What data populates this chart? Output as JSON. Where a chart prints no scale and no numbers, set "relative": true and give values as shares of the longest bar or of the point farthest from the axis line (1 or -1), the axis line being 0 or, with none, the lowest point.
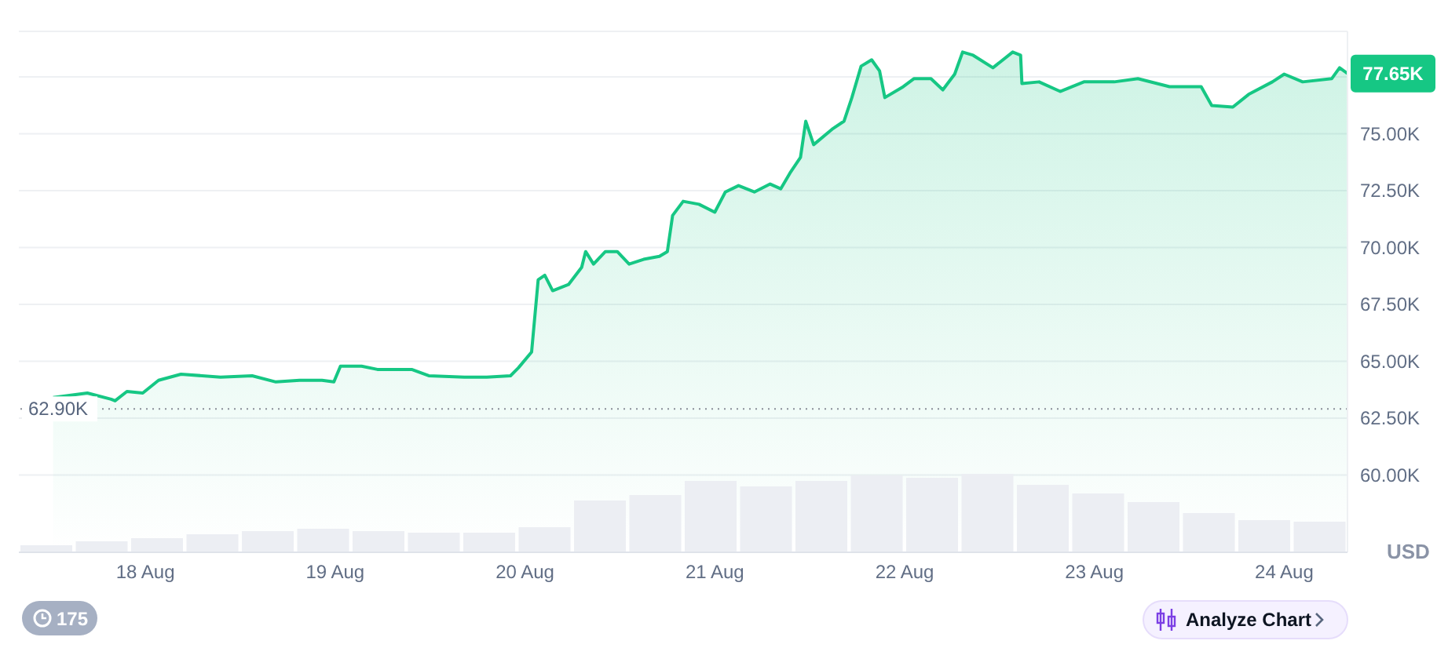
{
  "chart_data": [
    {
      "type": "area",
      "ylabel": "USD",
      "x": [
        "--08-17T12:20",
        "--08-17T16:40",
        "--08-17T19:40",
        "--08-17T20:10",
        "--08-17T21:40",
        "--08-17T23:40",
        "--08-18T01:40",
        "--08-18T04:30",
        "--08-18T09:30",
        "--08-18T13:30",
        "--08-18T16:30",
        "--08-18T19:30",
        "--08-18T22:20",
        "--08-18T23:50",
        "--08-19T00:40",
        "--08-19T03:20",
        "--08-19T05:20",
        "--08-19T09:40",
        "--08-19T11:50",
        "--08-19T16:20",
        "--08-19T19:10",
        "--08-19T22:10",
        "--08-19T23:10",
        "--08-20T00:50",
        "--08-20T01:40",
        "--08-20T02:30",
        "--08-20T03:30",
        "--08-20T05:30",
        "--08-20T07:10",
        "--08-20T07:40",
        "--08-20T08:40",
        "--08-20T10:10",
        "--08-20T11:40",
        "--08-20T13:10",
        "--08-20T15:00",
        "--08-20T17:00",
        "--08-20T18:00",
        "--08-20T18:40",
        "--08-20T20:00",
        "--08-20T22:00",
        "--08-21T00:00",
        "--08-21T01:20",
        "--08-21T03:00",
        "--08-21T05:00",
        "--08-21T07:00",
        "--08-21T08:20",
        "--08-21T09:30",
        "--08-21T10:50",
        "--08-21T11:30",
        "--08-21T12:30",
        "--08-21T14:50",
        "--08-21T16:20",
        "--08-21T17:20",
        "--08-21T18:30",
        "--08-21T19:50",
        "--08-21T20:50",
        "--08-21T21:30",
        "--08-21T23:50",
        "--08-22T01:10",
        "--08-22T03:20",
        "--08-22T04:50",
        "--08-22T06:20",
        "--08-22T07:20",
        "--08-22T08:40",
        "--08-22T11:10",
        "--08-22T13:40",
        "--08-22T14:40",
        "--08-22T14:50",
        "--08-22T17:00",
        "--08-22T19:40",
        "--08-22T22:40",
        "--08-23T02:30",
        "--08-23T05:30",
        "--08-23T09:30",
        "--08-23T13:30",
        "--08-23T14:50",
        "--08-23T17:30",
        "--08-23T19:30",
        "--08-23T22:30",
        "--08-24T00:00",
        "--08-24T02:20",
        "--08-24T06:00",
        "--08-24T07:00",
        "--08-24T08:00"
      ],
      "series": [
        {
          "color": "#16c784",
          "values": [
            63400,
            63600,
            63330,
            63260,
            63670,
            63600,
            64160,
            64430,
            64300,
            64360,
            64090,
            64160,
            64160,
            64090,
            64780,
            64780,
            64640,
            64640,
            64360,
            64300,
            64300,
            64360,
            64710,
            65400,
            68580,
            68780,
            68100,
            68370,
            69130,
            69820,
            69270,
            69820,
            69820,
            69270,
            69480,
            69610,
            69820,
            71410,
            72030,
            71900,
            71550,
            72440,
            72720,
            72440,
            72790,
            72580,
            73270,
            73960,
            75550,
            74520,
            75200,
            75550,
            76590,
            77970,
            78250,
            77760,
            76590,
            77070,
            77420,
            77420,
            76930,
            77620,
            78590,
            78450,
            77900,
            78590,
            78450,
            77210,
            77280,
            76860,
            77280,
            77280,
            77420,
            77070,
            77070,
            76240,
            76170,
            76730,
            77280,
            77620,
            77280,
            77420,
            77900,
            77650
          ]
        }
      ],
      "xlim": [
        "--08-17T08:00",
        "--08-24T08:00"
      ],
      "xticks": [
        {
          "value": "--08-18",
          "label": "18 Aug"
        },
        {
          "value": "--08-19",
          "label": "19 Aug"
        },
        {
          "value": "--08-20",
          "label": "20 Aug"
        },
        {
          "value": "--08-21",
          "label": "21 Aug"
        },
        {
          "value": "--08-22",
          "label": "22 Aug"
        },
        {
          "value": "--08-23",
          "label": "23 Aug"
        },
        {
          "value": "--08-24",
          "label": "24 Aug"
        }
      ],
      "ylim": [
        56600,
        79500
      ],
      "yticks": [
        {
          "value": 60000,
          "label": "60.00K"
        },
        {
          "value": 62500,
          "label": "62.50K"
        },
        {
          "value": 65000,
          "label": "65.00K"
        },
        {
          "value": 67500,
          "label": "67.50K"
        },
        {
          "value": 70000,
          "label": "70.00K"
        },
        {
          "value": 72500,
          "label": "72.50K"
        },
        {
          "value": 75000,
          "label": "75.00K"
        },
        {
          "value": 77500,
          "label": null
        }
      ],
      "grid": "y",
      "ref_lines": [
        {
          "axis": "y",
          "value": 62900,
          "label": "62.90K",
          "color": "#8a8f99",
          "line_style": "dotted"
        }
      ],
      "annotations": [
        {
          "text": "77.65K",
          "x": "--08-24T08:00",
          "y": 77650
        },
        "175",
        "Analyze Chart"
      ]
    },
    {
      "type": "bar",
      "relative": true,
      "color": "#eceef3",
      "categories": [
        null,
        null,
        null,
        null,
        null,
        null,
        null,
        null,
        null,
        null,
        null,
        null,
        null,
        null,
        null,
        null,
        null,
        null,
        null,
        null,
        null,
        null,
        null,
        null
      ],
      "values": [
        0.09,
        0.14,
        0.18,
        0.23,
        0.27,
        0.3,
        0.27,
        0.25,
        0.25,
        0.32,
        0.66,
        0.73,
        0.91,
        0.84,
        0.91,
        0.98,
        0.95,
        1,
        0.86,
        0.75,
        0.64,
        0.5,
        0.41,
        0.39
      ]
    }
  ]
}
